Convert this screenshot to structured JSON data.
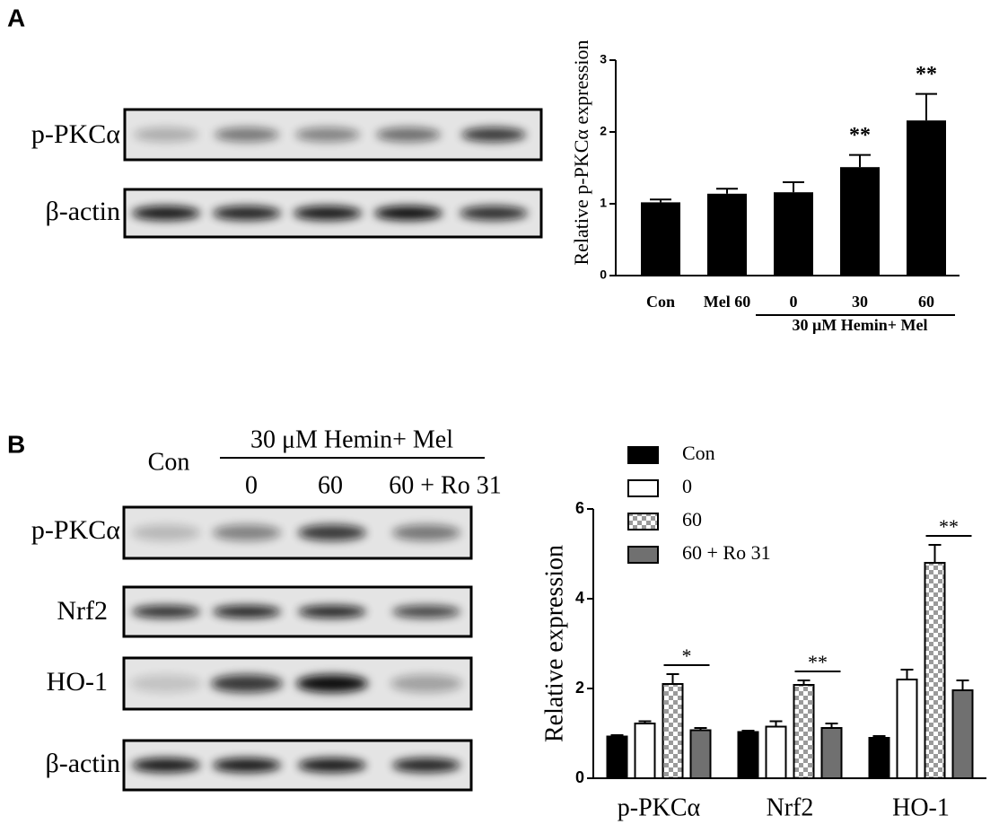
{
  "panels": {
    "A": {
      "label": "A",
      "blots": [
        "p-PKCα",
        "β-actin"
      ]
    },
    "B": {
      "label": "B",
      "lane_headers": {
        "con": "Con",
        "group": "30 μM Hemin+ Mel",
        "lanes": [
          "0",
          "60",
          "60 + Ro 31"
        ]
      },
      "blots": [
        "p-PKCα",
        "Nrf2",
        "HO-1",
        "β-actin"
      ]
    }
  },
  "chart_data": [
    {
      "type": "bar",
      "y_label": "Relative p-PKCα expression",
      "categories": [
        "Con",
        "Mel 60",
        "0",
        "30",
        "60"
      ],
      "x_group_label": "30 μM Hemin+ Mel",
      "values": [
        1.02,
        1.14,
        1.16,
        1.51,
        2.16
      ],
      "errors": [
        0.04,
        0.07,
        0.14,
        0.17,
        0.37
      ],
      "significance": [
        null,
        null,
        null,
        "**",
        "**"
      ],
      "color": "#000000",
      "ylim": [
        0,
        3
      ],
      "yticks": [
        0,
        1,
        2,
        3
      ]
    },
    {
      "type": "grouped_bar",
      "y_label": "Relative  expression",
      "categories": [
        "p-PKCα",
        "Nrf2",
        "HO-1"
      ],
      "series": [
        {
          "name": "Con",
          "color": "#000000",
          "values": [
            0.93,
            1.03,
            0.9
          ],
          "errors": [
            0.03,
            0.03,
            0.04
          ]
        },
        {
          "name": "0",
          "color": "#ffffff",
          "values": [
            1.22,
            1.15,
            2.2
          ],
          "errors": [
            0.05,
            0.12,
            0.22
          ]
        },
        {
          "name": "60",
          "color": "#9a9a9a",
          "pattern": "checker",
          "values": [
            2.1,
            2.08,
            4.8
          ],
          "errors": [
            0.22,
            0.1,
            0.4
          ]
        },
        {
          "name": "60 + Ro 31",
          "color": "#707070",
          "values": [
            1.07,
            1.12,
            1.96
          ],
          "errors": [
            0.05,
            0.1,
            0.22
          ]
        }
      ],
      "significance": [
        "*",
        "**",
        "**"
      ],
      "ylim": [
        0,
        6
      ],
      "yticks": [
        0,
        2,
        4,
        6
      ]
    }
  ]
}
